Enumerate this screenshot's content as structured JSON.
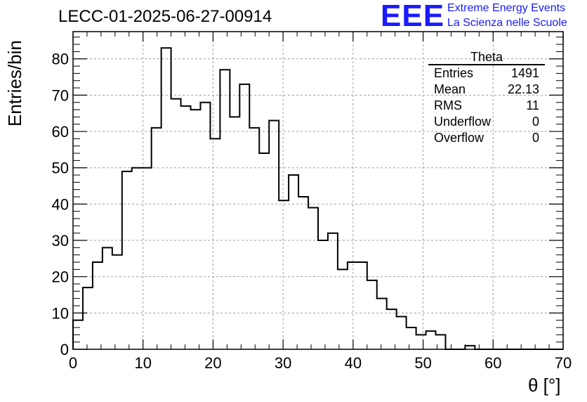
{
  "header": {
    "run_title": "LECC-01-2025-06-27-00914",
    "logo_text": "EEE",
    "logo_line1": "Extreme Energy Events",
    "logo_line2": "La Scienza nelle Scuole",
    "logo_color": "#1a1aff"
  },
  "stats_box": {
    "title": "Theta",
    "rows": [
      {
        "label": "Entries",
        "value": "1491"
      },
      {
        "label": "Mean",
        "value": "22.13"
      },
      {
        "label": "RMS",
        "value": "11"
      },
      {
        "label": "Underflow",
        "value": "0"
      },
      {
        "label": "Overflow",
        "value": "0"
      }
    ]
  },
  "chart_data": {
    "type": "bar",
    "style": "step-histogram",
    "title": "LECC-01-2025-06-27-00914",
    "xlabel": "θ [°]",
    "ylabel": "Entries/bin",
    "xlim": [
      0,
      70
    ],
    "ylim": [
      0,
      87.5
    ],
    "bin_width": 1.4,
    "bin_edges_start": 0,
    "values": [
      8,
      17,
      24,
      28,
      26,
      49,
      50,
      50,
      61,
      83,
      69,
      67,
      66,
      68,
      58,
      77,
      64,
      73,
      61,
      54,
      63,
      41,
      48,
      42,
      39,
      30,
      32,
      22,
      24,
      24,
      19,
      14,
      11,
      9,
      6,
      4,
      5,
      4,
      0,
      0,
      1,
      0,
      0,
      0,
      0,
      0,
      0,
      0,
      0,
      0
    ],
    "x_ticks": [
      0,
      10,
      20,
      30,
      40,
      50,
      60,
      70
    ],
    "y_ticks": [
      0,
      10,
      20,
      30,
      40,
      50,
      60,
      70,
      80
    ],
    "grid": true,
    "line_color": "#000000",
    "grid_color": "#a0a0a0"
  }
}
